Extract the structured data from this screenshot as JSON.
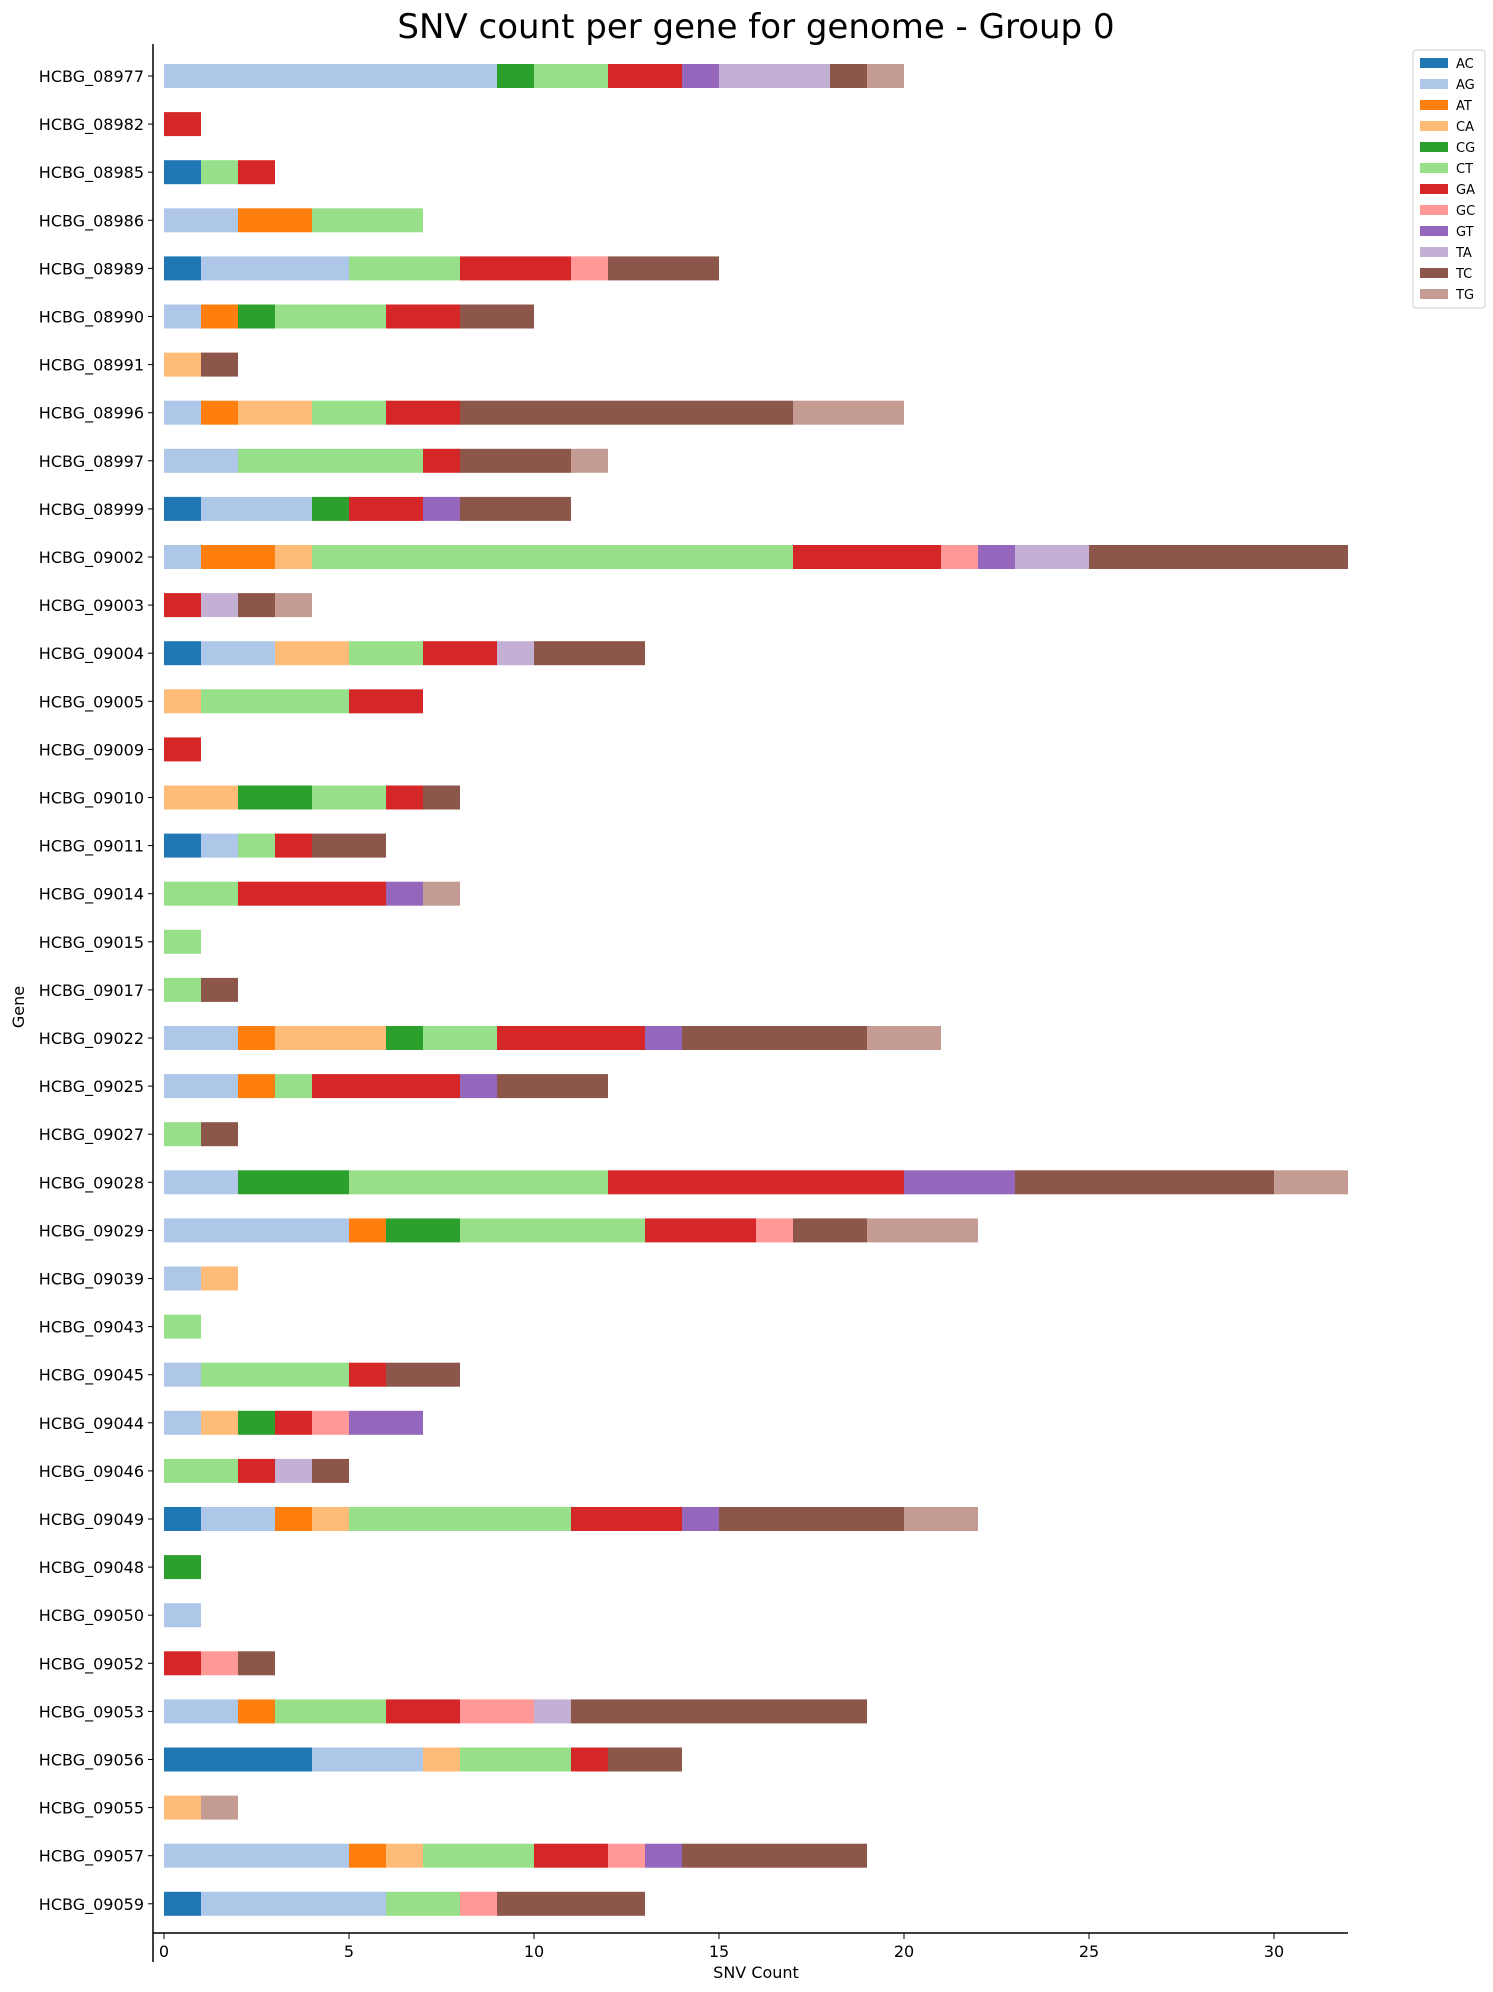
{
  "chart_data": {
    "type": "bar",
    "orientation": "horizontal",
    "stacked": true,
    "title": "SNV count per gene for genome - Group 0",
    "xlabel": "SNV Count",
    "ylabel": "Gene",
    "xlim": [
      0,
      32
    ],
    "xticks": [
      0,
      5,
      10,
      15,
      20,
      25,
      30
    ],
    "grid": false,
    "legend_position": "top-right",
    "categories": [
      "HCBG_08977",
      "HCBG_08982",
      "HCBG_08985",
      "HCBG_08986",
      "HCBG_08989",
      "HCBG_08990",
      "HCBG_08991",
      "HCBG_08996",
      "HCBG_08997",
      "HCBG_08999",
      "HCBG_09002",
      "HCBG_09003",
      "HCBG_09004",
      "HCBG_09005",
      "HCBG_09009",
      "HCBG_09010",
      "HCBG_09011",
      "HCBG_09014",
      "HCBG_09015",
      "HCBG_09017",
      "HCBG_09022",
      "HCBG_09025",
      "HCBG_09027",
      "HCBG_09028",
      "HCBG_09029",
      "HCBG_09039",
      "HCBG_09043",
      "HCBG_09045",
      "HCBG_09044",
      "HCBG_09046",
      "HCBG_09049",
      "HCBG_09048",
      "HCBG_09050",
      "HCBG_09052",
      "HCBG_09053",
      "HCBG_09056",
      "HCBG_09055",
      "HCBG_09057",
      "HCBG_09059"
    ],
    "series": [
      {
        "name": "AC",
        "color": "#1f77b4",
        "values": [
          0,
          0,
          1,
          0,
          1,
          0,
          0,
          0,
          0,
          1,
          0,
          0,
          1,
          0,
          0,
          0,
          1,
          0,
          0,
          0,
          0,
          0,
          0,
          0,
          0,
          0,
          0,
          0,
          0,
          0,
          1,
          0,
          0,
          0,
          0,
          4,
          0,
          0,
          1
        ]
      },
      {
        "name": "AG",
        "color": "#aec7e8",
        "values": [
          9,
          0,
          0,
          2,
          4,
          1,
          0,
          1,
          2,
          3,
          1,
          0,
          2,
          0,
          0,
          0,
          1,
          0,
          0,
          0,
          2,
          2,
          0,
          2,
          5,
          1,
          0,
          1,
          1,
          0,
          2,
          0,
          1,
          0,
          2,
          3,
          0,
          5,
          5
        ]
      },
      {
        "name": "AT",
        "color": "#ff7f0e",
        "values": [
          0,
          0,
          0,
          2,
          0,
          1,
          0,
          1,
          0,
          0,
          2,
          0,
          0,
          0,
          0,
          0,
          0,
          0,
          0,
          0,
          1,
          1,
          0,
          0,
          1,
          0,
          0,
          0,
          0,
          0,
          1,
          0,
          0,
          0,
          1,
          0,
          0,
          1,
          0
        ]
      },
      {
        "name": "CA",
        "color": "#ffbb78",
        "values": [
          0,
          0,
          0,
          0,
          0,
          0,
          1,
          2,
          0,
          0,
          1,
          0,
          2,
          1,
          0,
          2,
          0,
          0,
          0,
          0,
          3,
          0,
          0,
          0,
          0,
          1,
          0,
          0,
          1,
          0,
          1,
          0,
          0,
          0,
          0,
          1,
          1,
          1,
          0
        ]
      },
      {
        "name": "CG",
        "color": "#2ca02c",
        "values": [
          1,
          0,
          0,
          0,
          0,
          1,
          0,
          0,
          0,
          1,
          0,
          0,
          0,
          0,
          0,
          2,
          0,
          0,
          0,
          0,
          1,
          0,
          0,
          3,
          2,
          0,
          0,
          0,
          1,
          0,
          0,
          1,
          0,
          0,
          0,
          0,
          0,
          0,
          0
        ]
      },
      {
        "name": "CT",
        "color": "#98df8a",
        "values": [
          2,
          0,
          1,
          3,
          3,
          3,
          0,
          2,
          5,
          0,
          13,
          0,
          2,
          4,
          0,
          2,
          1,
          2,
          1,
          1,
          2,
          1,
          1,
          7,
          5,
          0,
          1,
          4,
          0,
          2,
          6,
          0,
          0,
          0,
          3,
          3,
          0,
          3,
          2
        ]
      },
      {
        "name": "GA",
        "color": "#d62728",
        "values": [
          2,
          1,
          1,
          0,
          3,
          2,
          0,
          2,
          1,
          2,
          4,
          1,
          2,
          2,
          1,
          1,
          1,
          4,
          0,
          0,
          4,
          4,
          0,
          8,
          3,
          0,
          0,
          1,
          1,
          1,
          3,
          0,
          0,
          1,
          2,
          1,
          0,
          2,
          0
        ]
      },
      {
        "name": "GC",
        "color": "#ff9896",
        "values": [
          0,
          0,
          0,
          0,
          1,
          0,
          0,
          0,
          0,
          0,
          1,
          0,
          0,
          0,
          0,
          0,
          0,
          0,
          0,
          0,
          0,
          0,
          0,
          0,
          1,
          0,
          0,
          0,
          1,
          0,
          0,
          0,
          0,
          1,
          2,
          0,
          0,
          1,
          1
        ]
      },
      {
        "name": "GT",
        "color": "#9467bd",
        "values": [
          1,
          0,
          0,
          0,
          0,
          0,
          0,
          0,
          0,
          1,
          1,
          0,
          0,
          0,
          0,
          0,
          0,
          1,
          0,
          0,
          1,
          1,
          0,
          3,
          0,
          0,
          0,
          0,
          2,
          0,
          1,
          0,
          0,
          0,
          0,
          0,
          0,
          1,
          0
        ]
      },
      {
        "name": "TA",
        "color": "#c5b0d5",
        "values": [
          3,
          0,
          0,
          0,
          0,
          0,
          0,
          0,
          0,
          0,
          2,
          1,
          1,
          0,
          0,
          0,
          0,
          0,
          0,
          0,
          0,
          0,
          0,
          0,
          0,
          0,
          0,
          0,
          0,
          1,
          0,
          0,
          0,
          0,
          1,
          0,
          0,
          0,
          0
        ]
      },
      {
        "name": "TC",
        "color": "#8c564b",
        "values": [
          1,
          0,
          0,
          0,
          3,
          2,
          1,
          9,
          3,
          3,
          7,
          1,
          3,
          0,
          0,
          1,
          2,
          0,
          0,
          1,
          5,
          3,
          1,
          7,
          2,
          0,
          0,
          2,
          0,
          1,
          5,
          0,
          0,
          1,
          8,
          2,
          0,
          5,
          4
        ]
      },
      {
        "name": "TG",
        "color": "#c49c94",
        "values": [
          1,
          0,
          0,
          0,
          0,
          0,
          0,
          3,
          1,
          0,
          0,
          1,
          0,
          0,
          0,
          0,
          0,
          1,
          0,
          0,
          2,
          0,
          0,
          2,
          3,
          0,
          0,
          0,
          0,
          0,
          2,
          0,
          0,
          0,
          0,
          0,
          1,
          0,
          0
        ]
      }
    ]
  }
}
